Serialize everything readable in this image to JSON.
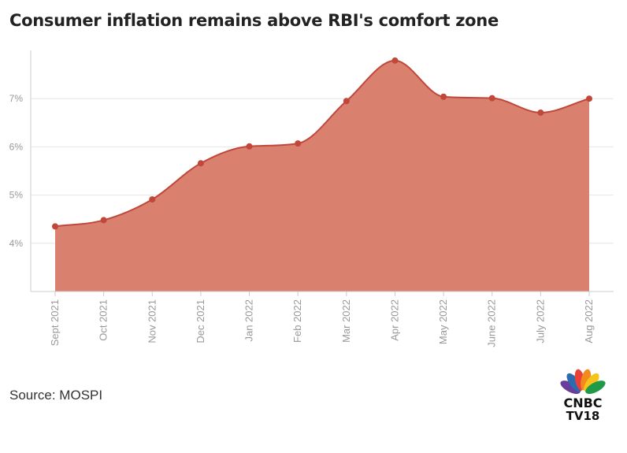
{
  "header": {
    "title": "Consumer inflation remains above RBI's comfort zone"
  },
  "footer": {
    "source": "Source: MOSPI"
  },
  "logo": {
    "line1": "CNBC",
    "line2": "TV18"
  },
  "colors": {
    "fill": "#d9806f",
    "line": "#c0473a",
    "point": "#c0473a",
    "grid": "#e6e6e6",
    "axis": "#cccccc"
  },
  "chart_data": {
    "type": "area",
    "title": "Consumer inflation remains above RBI's comfort zone",
    "categories": [
      "Sept 2021",
      "Oct 2021",
      "Nov 2021",
      "Dec 2021",
      "Jan 2022",
      "Feb 2022",
      "Mar 2022",
      "Apr 2022",
      "May 2022",
      "June 2022",
      "July 2022",
      "Aug 2022"
    ],
    "series": [
      {
        "values": [
          4.35,
          4.48,
          4.91,
          5.66,
          6.01,
          6.07,
          6.95,
          7.79,
          7.04,
          7.01,
          6.71,
          7.0
        ]
      }
    ],
    "yticks": [
      "4%",
      "5%",
      "6%",
      "7%"
    ],
    "ytick_values": [
      4,
      5,
      6,
      7
    ],
    "ylim": [
      3,
      8
    ],
    "grid": true,
    "legend": "none",
    "xlabel": "",
    "ylabel": ""
  }
}
